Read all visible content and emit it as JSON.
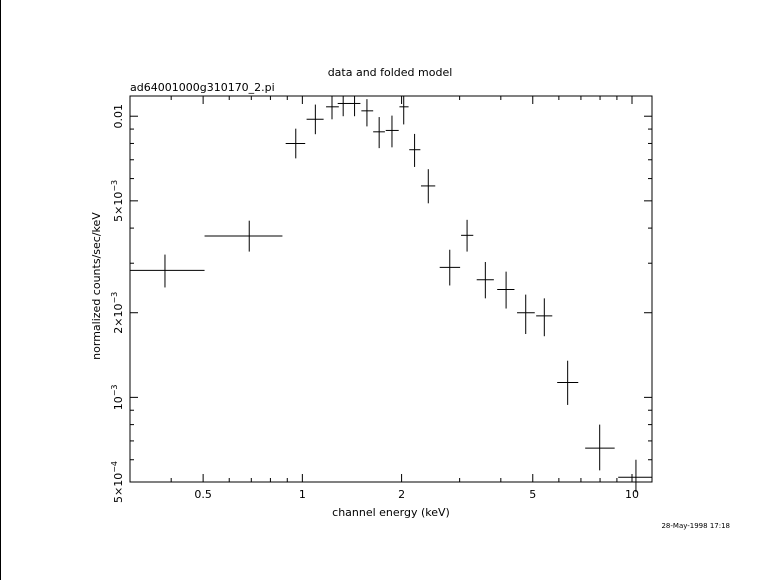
{
  "chart_data": {
    "type": "scatter",
    "title": "data and folded model",
    "subtitle": "ad64001000g310170_2.pi",
    "xlabel": "channel energy (keV)",
    "ylabel": "normalized counts/sec/keV",
    "xscale": "log",
    "yscale": "log",
    "xlim": [
      0.3,
      11.5
    ],
    "ylim": [
      0.0005,
      0.0118
    ],
    "x_ticks": [
      {
        "value": 0.5,
        "label": "0.5"
      },
      {
        "value": 1,
        "label": "1"
      },
      {
        "value": 2,
        "label": "2"
      },
      {
        "value": 5,
        "label": "5"
      },
      {
        "value": 10,
        "label": "10"
      }
    ],
    "y_ticks": [
      {
        "value": 0.0005,
        "mant": "5×10",
        "exp": "−4"
      },
      {
        "value": 0.001,
        "mant": "10",
        "exp": "−3"
      },
      {
        "value": 0.002,
        "mant": "2×10",
        "exp": "−3"
      },
      {
        "value": 0.005,
        "mant": "5×10",
        "exp": "−3"
      },
      {
        "value": 0.01,
        "mant": "0.01",
        "exp": ""
      }
    ],
    "series": [
      {
        "points": [
          {
            "x": 0.383,
            "xlo": 0.3,
            "xhi": 0.505,
            "y": 0.00283,
            "ylo": 0.00246,
            "yhi": 0.00322
          },
          {
            "x": 0.69,
            "xlo": 0.505,
            "xhi": 0.87,
            "y": 0.00375,
            "ylo": 0.0033,
            "yhi": 0.00425
          },
          {
            "x": 0.955,
            "xlo": 0.89,
            "xhi": 1.02,
            "y": 0.008,
            "ylo": 0.00708,
            "yhi": 0.00903
          },
          {
            "x": 1.095,
            "xlo": 1.03,
            "xhi": 1.16,
            "y": 0.00975,
            "ylo": 0.00863,
            "yhi": 0.011
          },
          {
            "x": 1.23,
            "xlo": 1.18,
            "xhi": 1.29,
            "y": 0.0108,
            "ylo": 0.00975,
            "yhi": 0.0118
          },
          {
            "x": 1.33,
            "xlo": 1.28,
            "xhi": 1.4,
            "y": 0.0111,
            "ylo": 0.01,
            "yhi": 0.0118
          },
          {
            "x": 1.44,
            "xlo": 1.39,
            "xhi": 1.5,
            "y": 0.0111,
            "ylo": 0.01,
            "yhi": 0.0118
          },
          {
            "x": 1.57,
            "xlo": 1.51,
            "xhi": 1.64,
            "y": 0.01045,
            "ylo": 0.0092,
            "yhi": 0.0115
          },
          {
            "x": 1.71,
            "xlo": 1.64,
            "xhi": 1.78,
            "y": 0.0088,
            "ylo": 0.0077,
            "yhi": 0.00993
          },
          {
            "x": 1.87,
            "xlo": 1.79,
            "xhi": 1.96,
            "y": 0.0089,
            "ylo": 0.00775,
            "yhi": 0.01005
          },
          {
            "x": 2.03,
            "xlo": 1.97,
            "xhi": 2.1,
            "y": 0.0108,
            "ylo": 0.00935,
            "yhi": 0.0118
          },
          {
            "x": 2.19,
            "xlo": 2.11,
            "xhi": 2.28,
            "y": 0.0076,
            "ylo": 0.0066,
            "yhi": 0.00865
          },
          {
            "x": 2.41,
            "xlo": 2.29,
            "xhi": 2.53,
            "y": 0.00565,
            "ylo": 0.0049,
            "yhi": 0.00648
          },
          {
            "x": 2.8,
            "xlo": 2.61,
            "xhi": 3.01,
            "y": 0.0029,
            "ylo": 0.0025,
            "yhi": 0.00335
          },
          {
            "x": 3.16,
            "xlo": 3.03,
            "xhi": 3.3,
            "y": 0.00377,
            "ylo": 0.0033,
            "yhi": 0.00428
          },
          {
            "x": 3.59,
            "xlo": 3.38,
            "xhi": 3.81,
            "y": 0.00262,
            "ylo": 0.00225,
            "yhi": 0.00303
          },
          {
            "x": 4.15,
            "xlo": 3.9,
            "xhi": 4.4,
            "y": 0.00242,
            "ylo": 0.00207,
            "yhi": 0.0028
          },
          {
            "x": 4.76,
            "xlo": 4.48,
            "xhi": 5.07,
            "y": 0.002,
            "ylo": 0.00168,
            "yhi": 0.00232
          },
          {
            "x": 5.42,
            "xlo": 5.12,
            "xhi": 5.73,
            "y": 0.00195,
            "ylo": 0.00165,
            "yhi": 0.00225
          },
          {
            "x": 6.38,
            "xlo": 5.93,
            "xhi": 6.87,
            "y": 0.00113,
            "ylo": 0.00094,
            "yhi": 0.00135
          },
          {
            "x": 7.98,
            "xlo": 7.21,
            "xhi": 8.86,
            "y": 0.00066,
            "ylo": 0.00055,
            "yhi": 0.0008
          },
          {
            "x": 10.28,
            "xlo": 9.08,
            "xhi": 11.5,
            "y": 0.00052,
            "ylo": 0.00046,
            "yhi": 0.0006
          }
        ]
      }
    ],
    "grid": false,
    "legend": "none"
  },
  "footer": {
    "timestamp": "28-May-1998 17:18"
  }
}
